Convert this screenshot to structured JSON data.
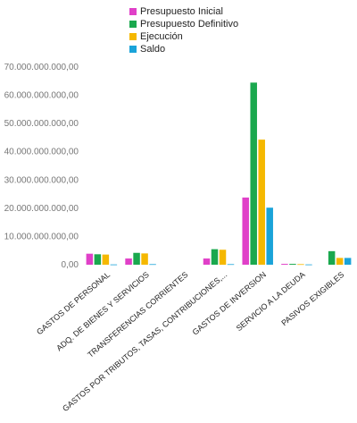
{
  "chart_data": {
    "type": "bar",
    "categories": [
      "GASTOS DE PERSONAL",
      "ADQ. DE BIENES Y SERVICIOS",
      "TRANSFERENCIAS CORRIENTES",
      "GASTOS POR TRIBUTOS, TASAS, CONTRIBUCIONES,...",
      "GASTOS DE INVERSION",
      "SERVICIO A LA DEUDA",
      "PASIVOS EXIGIBLES"
    ],
    "series": [
      {
        "name": "Presupuesto Inicial",
        "color": "#e040c8",
        "values": [
          3900000000,
          2200000000,
          0,
          2200000000,
          23800000000,
          300000000,
          0
        ]
      },
      {
        "name": "Presupuesto Definitivo",
        "color": "#1aa84e",
        "values": [
          3700000000,
          4200000000,
          0,
          5500000000,
          64500000000,
          300000000,
          4800000000
        ]
      },
      {
        "name": "Ejecución",
        "color": "#f5b800",
        "values": [
          3600000000,
          4000000000,
          0,
          5300000000,
          44300000000,
          200000000,
          2400000000
        ]
      },
      {
        "name": "Saldo",
        "color": "#1aa3d9",
        "values": [
          100000000,
          200000000,
          0,
          200000000,
          20200000000,
          100000000,
          2400000000
        ]
      }
    ],
    "yticks": [
      {
        "value": 0,
        "label": "0,00"
      },
      {
        "value": 10000000000,
        "label": "10.000.000.000,00"
      },
      {
        "value": 20000000000,
        "label": "20.000.000.000,00"
      },
      {
        "value": 30000000000,
        "label": "30.000.000.000,00"
      },
      {
        "value": 40000000000,
        "label": "40.000.000.000,00"
      },
      {
        "value": 50000000000,
        "label": "50.000.000.000,00"
      },
      {
        "value": 60000000000,
        "label": "60.000.000.000,00"
      },
      {
        "value": 70000000000,
        "label": "70.000.000.000,00"
      }
    ],
    "ylim": [
      0,
      70000000000
    ],
    "title": "",
    "xlabel": "",
    "ylabel": "",
    "grid": false,
    "legend": "top-center"
  }
}
